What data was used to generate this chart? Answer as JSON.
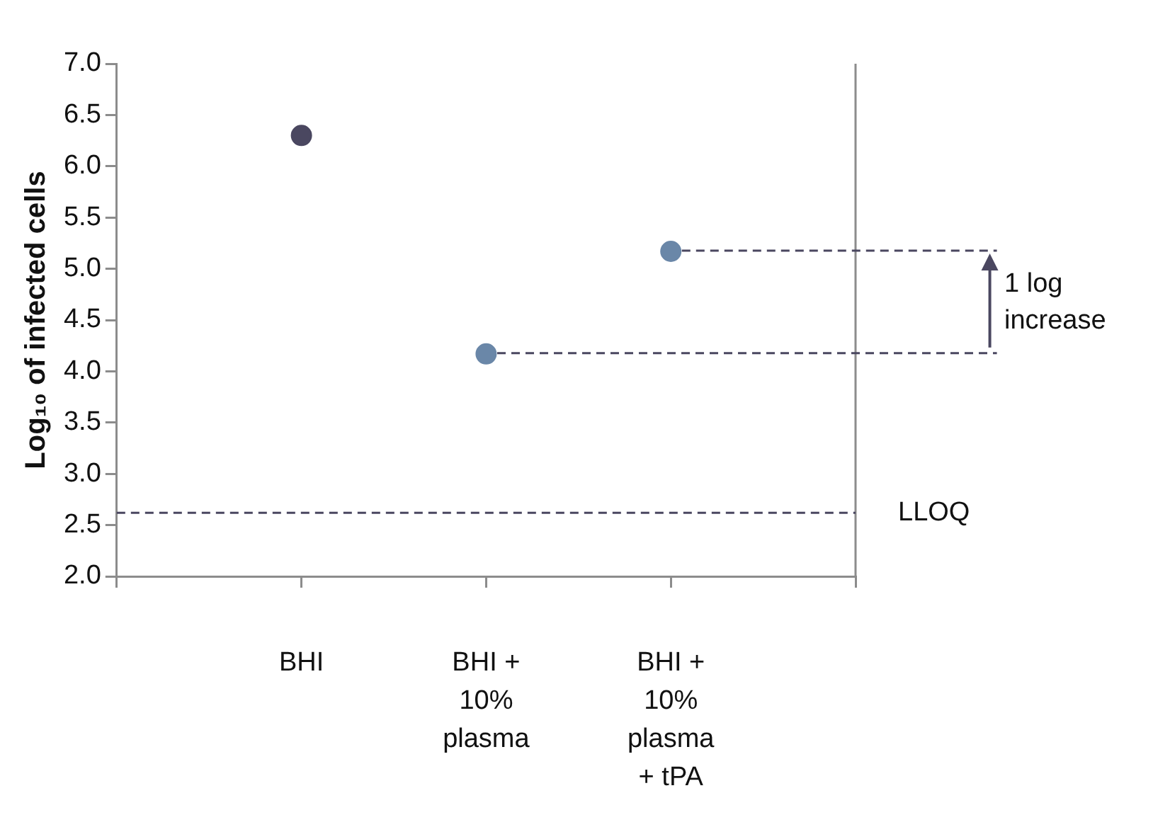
{
  "chart_data": {
    "type": "scatter",
    "ylabel": "Log₁₀ of infected cells",
    "categories": [
      "BHI",
      "BHI + 10% plasma",
      "BHI + 10% plasma + tPA"
    ],
    "series": [
      {
        "colors": [
          "#4a4760",
          "#6a87a8",
          "#6a87a8"
        ],
        "values": [
          6.3,
          4.17,
          5.17
        ]
      }
    ],
    "ylim": [
      2,
      7
    ],
    "yticks": [
      {
        "value": 2,
        "label": "2.0"
      },
      {
        "value": 2.5,
        "label": "2.5"
      },
      {
        "value": 3,
        "label": "3.0"
      },
      {
        "value": 3.5,
        "label": "3.5"
      },
      {
        "value": 4,
        "label": "4.0"
      },
      {
        "value": 4.5,
        "label": "4.5"
      },
      {
        "value": 5,
        "label": "5.0"
      },
      {
        "value": 5.5,
        "label": "5.5"
      },
      {
        "value": 6,
        "label": "6.0"
      },
      {
        "value": 6.5,
        "label": "6.5"
      },
      {
        "value": 7,
        "label": "7.0"
      }
    ],
    "ref_lines": [
      {
        "axis": "y",
        "value": 2.62,
        "label": "LLOQ",
        "color": "#4a4760",
        "line_style": "dashed"
      }
    ],
    "annotations": [
      "1 log increase"
    ],
    "marker": "circle",
    "grid": false,
    "legend": false
  }
}
